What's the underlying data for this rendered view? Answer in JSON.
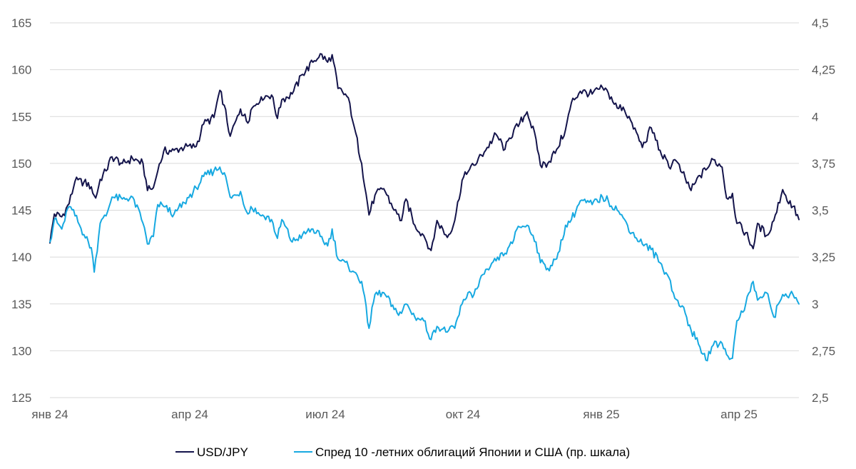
{
  "chart_data": {
    "type": "line",
    "title": "",
    "xlabel": "",
    "ylabel": "",
    "x_tick_labels": [
      "янв 24",
      "апр 24",
      "июл 24",
      "окт 24",
      "янв 25",
      "апр 25"
    ],
    "y_left": {
      "ylim": [
        125,
        165
      ],
      "ticks": [
        "125",
        "130",
        "135",
        "140",
        "145",
        "150",
        "155",
        "160",
        "165"
      ]
    },
    "y_right": {
      "ylim": [
        2.5,
        4.5
      ],
      "ticks": [
        "2,5",
        "2,75",
        "3",
        "3,25",
        "3,5",
        "3,75",
        "4",
        "4,25",
        "4,5"
      ]
    },
    "grid": true,
    "legend_position": "bottom",
    "x_range": [
      "2024-01-02",
      "2025-05-23"
    ],
    "series": [
      {
        "name": "USD/JPY",
        "axis": "left",
        "color": "#14144b",
        "points": [
          [
            "2024-01-02",
            141.5
          ],
          [
            "2024-01-05",
            144.6
          ],
          [
            "2024-01-10",
            144.3
          ],
          [
            "2024-01-15",
            145.7
          ],
          [
            "2024-01-19",
            148.1
          ],
          [
            "2024-01-25",
            148.0
          ],
          [
            "2024-01-30",
            147.5
          ],
          [
            "2024-02-02",
            146.3
          ],
          [
            "2024-02-05",
            148.3
          ],
          [
            "2024-02-09",
            149.2
          ],
          [
            "2024-02-13",
            150.7
          ],
          [
            "2024-02-20",
            150.0
          ],
          [
            "2024-02-27",
            150.5
          ],
          [
            "2024-03-05",
            150.0
          ],
          [
            "2024-03-08",
            147.1
          ],
          [
            "2024-03-12",
            147.4
          ],
          [
            "2024-03-15",
            149.2
          ],
          [
            "2024-03-19",
            151.3
          ],
          [
            "2024-03-26",
            151.4
          ],
          [
            "2024-04-02",
            151.7
          ],
          [
            "2024-04-10",
            151.8
          ],
          [
            "2024-04-15",
            154.2
          ],
          [
            "2024-04-22",
            154.9
          ],
          [
            "2024-04-26",
            157.8
          ],
          [
            "2024-04-29",
            156.2
          ],
          [
            "2024-05-03",
            152.9
          ],
          [
            "2024-05-07",
            154.6
          ],
          [
            "2024-05-10",
            155.8
          ],
          [
            "2024-05-15",
            154.3
          ],
          [
            "2024-05-17",
            155.7
          ],
          [
            "2024-05-24",
            157.1
          ],
          [
            "2024-05-31",
            157.3
          ],
          [
            "2024-06-04",
            154.8
          ],
          [
            "2024-06-07",
            156.8
          ],
          [
            "2024-06-14",
            157.4
          ],
          [
            "2024-06-21",
            159.5
          ],
          [
            "2024-06-28",
            160.8
          ],
          [
            "2024-07-03",
            161.7
          ],
          [
            "2024-07-08",
            160.8
          ],
          [
            "2024-07-11",
            161.6
          ],
          [
            "2024-07-15",
            158.0
          ],
          [
            "2024-07-22",
            157.0
          ],
          [
            "2024-07-26",
            153.9
          ],
          [
            "2024-07-31",
            150.0
          ],
          [
            "2024-08-05",
            144.5
          ],
          [
            "2024-08-09",
            146.6
          ],
          [
            "2024-08-15",
            147.3
          ],
          [
            "2024-08-22",
            145.0
          ],
          [
            "2024-08-27",
            143.9
          ],
          [
            "2024-08-30",
            146.2
          ],
          [
            "2024-09-05",
            143.4
          ],
          [
            "2024-09-11",
            142.3
          ],
          [
            "2024-09-16",
            140.7
          ],
          [
            "2024-09-20",
            143.9
          ],
          [
            "2024-09-27",
            142.1
          ],
          [
            "2024-10-02",
            143.9
          ],
          [
            "2024-10-07",
            148.2
          ],
          [
            "2024-10-11",
            149.1
          ],
          [
            "2024-10-15",
            149.8
          ],
          [
            "2024-10-22",
            151.2
          ],
          [
            "2024-10-30",
            153.1
          ],
          [
            "2024-11-05",
            151.5
          ],
          [
            "2024-11-08",
            152.7
          ],
          [
            "2024-11-15",
            154.3
          ],
          [
            "2024-11-20",
            155.5
          ],
          [
            "2024-11-26",
            152.6
          ],
          [
            "2024-11-29",
            149.8
          ],
          [
            "2024-12-04",
            150.0
          ],
          [
            "2024-12-10",
            151.5
          ],
          [
            "2024-12-16",
            153.6
          ],
          [
            "2024-12-20",
            156.5
          ],
          [
            "2024-12-26",
            157.7
          ],
          [
            "2025-01-03",
            157.4
          ],
          [
            "2025-01-10",
            158.1
          ],
          [
            "2025-01-14",
            157.5
          ],
          [
            "2025-01-20",
            155.9
          ],
          [
            "2025-01-24",
            156.0
          ],
          [
            "2025-01-30",
            154.3
          ],
          [
            "2025-02-06",
            151.7
          ],
          [
            "2025-02-12",
            153.8
          ],
          [
            "2025-02-18",
            151.4
          ],
          [
            "2025-02-24",
            149.6
          ],
          [
            "2025-02-28",
            150.4
          ],
          [
            "2025-03-05",
            149.0
          ],
          [
            "2025-03-11",
            147.1
          ],
          [
            "2025-03-17",
            148.7
          ],
          [
            "2025-03-21",
            149.3
          ],
          [
            "2025-03-26",
            150.4
          ],
          [
            "2025-04-01",
            149.6
          ],
          [
            "2025-04-04",
            146.3
          ],
          [
            "2025-04-08",
            146.8
          ],
          [
            "2025-04-11",
            143.6
          ],
          [
            "2025-04-17",
            142.6
          ],
          [
            "2025-04-22",
            140.9
          ],
          [
            "2025-04-25",
            143.6
          ],
          [
            "2025-05-01",
            142.3
          ],
          [
            "2025-05-06",
            143.9
          ],
          [
            "2025-05-12",
            147.2
          ],
          [
            "2025-05-15",
            146.0
          ],
          [
            "2025-05-19",
            145.4
          ],
          [
            "2025-05-23",
            144.0
          ]
        ]
      },
      {
        "name": "Спред 10 -летних облигаций Японии и США (пр. шкала)",
        "axis": "right",
        "color": "#17a9e1",
        "points": [
          [
            "2024-01-02",
            3.33
          ],
          [
            "2024-01-05",
            3.45
          ],
          [
            "2024-01-10",
            3.4
          ],
          [
            "2024-01-15",
            3.52
          ],
          [
            "2024-01-19",
            3.47
          ],
          [
            "2024-01-25",
            3.37
          ],
          [
            "2024-01-30",
            3.3
          ],
          [
            "2024-02-01",
            3.17
          ],
          [
            "2024-02-05",
            3.43
          ],
          [
            "2024-02-09",
            3.47
          ],
          [
            "2024-02-13",
            3.57
          ],
          [
            "2024-02-20",
            3.56
          ],
          [
            "2024-02-27",
            3.57
          ],
          [
            "2024-03-05",
            3.43
          ],
          [
            "2024-03-08",
            3.32
          ],
          [
            "2024-03-12",
            3.36
          ],
          [
            "2024-03-15",
            3.53
          ],
          [
            "2024-03-19",
            3.52
          ],
          [
            "2024-03-26",
            3.48
          ],
          [
            "2024-04-02",
            3.54
          ],
          [
            "2024-04-10",
            3.62
          ],
          [
            "2024-04-15",
            3.68
          ],
          [
            "2024-04-22",
            3.71
          ],
          [
            "2024-04-26",
            3.73
          ],
          [
            "2024-04-29",
            3.7
          ],
          [
            "2024-05-03",
            3.57
          ],
          [
            "2024-05-07",
            3.58
          ],
          [
            "2024-05-10",
            3.6
          ],
          [
            "2024-05-15",
            3.48
          ],
          [
            "2024-05-17",
            3.52
          ],
          [
            "2024-05-24",
            3.47
          ],
          [
            "2024-05-31",
            3.45
          ],
          [
            "2024-06-04",
            3.35
          ],
          [
            "2024-06-07",
            3.45
          ],
          [
            "2024-06-14",
            3.33
          ],
          [
            "2024-06-21",
            3.37
          ],
          [
            "2024-06-28",
            3.4
          ],
          [
            "2024-07-03",
            3.36
          ],
          [
            "2024-07-08",
            3.31
          ],
          [
            "2024-07-11",
            3.4
          ],
          [
            "2024-07-15",
            3.24
          ],
          [
            "2024-07-22",
            3.2
          ],
          [
            "2024-07-26",
            3.17
          ],
          [
            "2024-07-31",
            3.12
          ],
          [
            "2024-08-05",
            2.87
          ],
          [
            "2024-08-09",
            3.05
          ],
          [
            "2024-08-15",
            3.06
          ],
          [
            "2024-08-22",
            2.97
          ],
          [
            "2024-08-27",
            2.95
          ],
          [
            "2024-08-30",
            3.0
          ],
          [
            "2024-09-05",
            2.93
          ],
          [
            "2024-09-11",
            2.91
          ],
          [
            "2024-09-16",
            2.81
          ],
          [
            "2024-09-20",
            2.88
          ],
          [
            "2024-09-27",
            2.85
          ],
          [
            "2024-10-02",
            2.87
          ],
          [
            "2024-10-07",
            3.0
          ],
          [
            "2024-10-11",
            3.06
          ],
          [
            "2024-10-15",
            3.05
          ],
          [
            "2024-10-22",
            3.16
          ],
          [
            "2024-10-30",
            3.23
          ],
          [
            "2024-11-05",
            3.27
          ],
          [
            "2024-11-08",
            3.31
          ],
          [
            "2024-11-15",
            3.41
          ],
          [
            "2024-11-20",
            3.42
          ],
          [
            "2024-11-26",
            3.33
          ],
          [
            "2024-11-29",
            3.22
          ],
          [
            "2024-12-04",
            3.19
          ],
          [
            "2024-12-10",
            3.24
          ],
          [
            "2024-12-16",
            3.42
          ],
          [
            "2024-12-20",
            3.45
          ],
          [
            "2024-12-26",
            3.55
          ],
          [
            "2025-01-03",
            3.53
          ],
          [
            "2025-01-10",
            3.57
          ],
          [
            "2025-01-14",
            3.55
          ],
          [
            "2025-01-20",
            3.5
          ],
          [
            "2025-01-24",
            3.46
          ],
          [
            "2025-01-30",
            3.38
          ],
          [
            "2025-02-06",
            3.32
          ],
          [
            "2025-02-12",
            3.29
          ],
          [
            "2025-02-18",
            3.22
          ],
          [
            "2025-02-24",
            3.14
          ],
          [
            "2025-02-28",
            3.03
          ],
          [
            "2025-03-05",
            2.99
          ],
          [
            "2025-03-11",
            2.86
          ],
          [
            "2025-03-17",
            2.77
          ],
          [
            "2025-03-21",
            2.7
          ],
          [
            "2025-03-26",
            2.78
          ],
          [
            "2025-04-01",
            2.79
          ],
          [
            "2025-04-04",
            2.73
          ],
          [
            "2025-04-08",
            2.71
          ],
          [
            "2025-04-11",
            2.91
          ],
          [
            "2025-04-17",
            3.0
          ],
          [
            "2025-04-22",
            3.12
          ],
          [
            "2025-04-25",
            3.02
          ],
          [
            "2025-05-01",
            3.06
          ],
          [
            "2025-05-06",
            2.93
          ],
          [
            "2025-05-12",
            3.05
          ],
          [
            "2025-05-15",
            3.04
          ],
          [
            "2025-05-19",
            3.05
          ],
          [
            "2025-05-23",
            3.0
          ]
        ]
      }
    ]
  }
}
